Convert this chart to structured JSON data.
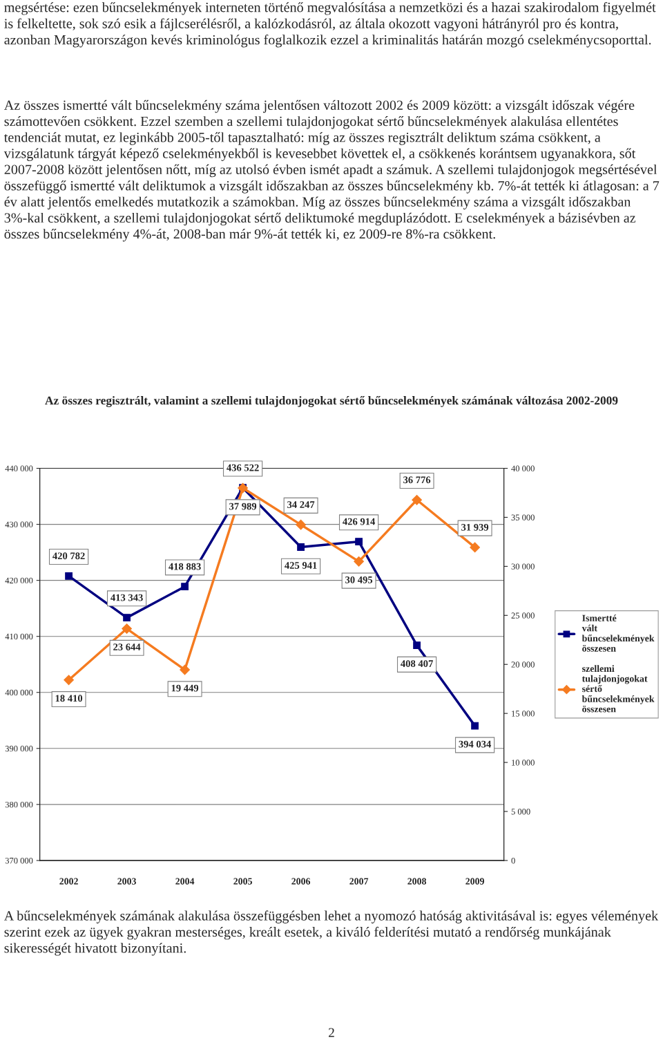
{
  "chart_data": {
    "type": "line",
    "title": "Az összes regisztrált, valamint a szellemi tulajdonjogokat sértő bűncselekmények számának változása 2002-2009",
    "categories": [
      "2002",
      "2003",
      "2004",
      "2005",
      "2006",
      "2007",
      "2008",
      "2009"
    ],
    "series": [
      {
        "name": "Ismertté vált bűncselekmények összesen",
        "color": "#000080",
        "marker": "square",
        "values": [
          420782,
          413343,
          418883,
          436522,
          425941,
          426914,
          408407,
          394034
        ],
        "value_labels": [
          "420 782",
          "413 343",
          "418 883",
          "436 522",
          "425 941",
          "426 914",
          "408 407",
          "394 034"
        ]
      },
      {
        "name": "szellemi tulajdonjogokat sértő bűncselekmények összesen",
        "color": "#f57b20",
        "marker": "diamond",
        "axis": "y2",
        "values": [
          18410,
          23644,
          19449,
          37989,
          34247,
          30495,
          36776,
          31939
        ],
        "value_labels": [
          "18 410",
          "23 644",
          "19 449",
          "37 989",
          "34 247",
          "30 495",
          "36 776",
          "31 939"
        ]
      }
    ],
    "ylim": [
      370000,
      440000
    ],
    "yticks": [
      {
        "value": 370000,
        "label": "370 000"
      },
      {
        "value": 380000,
        "label": "380 000"
      },
      {
        "value": 390000,
        "label": "390 000"
      },
      {
        "value": 400000,
        "label": "400 000"
      },
      {
        "value": 410000,
        "label": "410 000"
      },
      {
        "value": 420000,
        "label": "420 000"
      },
      {
        "value": 430000,
        "label": "430 000"
      },
      {
        "value": 440000,
        "label": "440 000"
      }
    ],
    "y2lim": [
      0,
      40000
    ],
    "y2ticks": [
      0,
      {
        "value": 5000,
        "label": "5 000"
      },
      {
        "value": 10000,
        "label": "10 000"
      },
      {
        "value": 15000,
        "label": "15 000"
      },
      {
        "value": 20000,
        "label": "20 000"
      },
      {
        "value": 25000,
        "label": "25 000"
      },
      {
        "value": 30000,
        "label": "30 000"
      },
      {
        "value": 35000,
        "label": "35 000"
      },
      {
        "value": 40000,
        "label": "40 000"
      }
    ],
    "grid": "y",
    "legend": "right",
    "line_style": "solid",
    "annotations": [
      "megsértése: ezen bűncselekmények interneten történő megvalósítása a nemzetközi és a hazai szakirodalom figyelmét is felkeltette, sok szó esik a fájlcserélésről, a kalózkodásról, az általa okozott vagyoni hátrányról pro és kontra, azonban Magyarországon kevés kriminológus foglalkozik ezzel a kriminalitás határán mozgó cselekménycsoporttal.",
      "Az összes ismertté vált bűncselekmény száma jelentősen változott 2002 és 2009 között: a vizsgált időszak végére számottevően csökkent. Ezzel szemben a szellemi tulajdonjogokat sértő bűncselekmények alakulása ellentétes tendenciát mutat, ez leginkább 2005-től tapasztalható: míg az összes regisztrált deliktum száma csökkent, a vizsgálatunk tárgyát képező cselekményekből is kevesebbet követtek el, a csökkenés korántsem ugyanakkora, sőt 2007-2008 között jelentősen nőtt, míg az utolsó évben ismét apadt a számuk. A szellemi tulajdonjogok megsértésével összefüggő ismertté vált deliktumok a vizsgált időszakban az összes bűncselekmény kb. 7%-át tették ki átlagosan: a 7 év alatt jelentős emelkedés mutatkozik a számokban. Míg az összes bűncselekmény száma a vizsgált időszakban 3%-kal csökkent, a szellemi tulajdonjogokat sértő deliktumoké megduplázódott. E cselekmények a bázisévben az összes bűncselekmény 4%-át, 2008-ban már 9%-át tették ki, ez 2009-re 8%-ra csökkent.",
      "A bűncselekmények számának alakulása összefüggésben lehet a nyomozó hatóság aktivitásával is: egyes vélemények szerint ezek az ügyek gyakran mesterséges, kreált esetek, a kiváló felderítési mutató a rendőrség munkájának sikerességét hivatott bizonyítani.",
      "2"
    ]
  }
}
